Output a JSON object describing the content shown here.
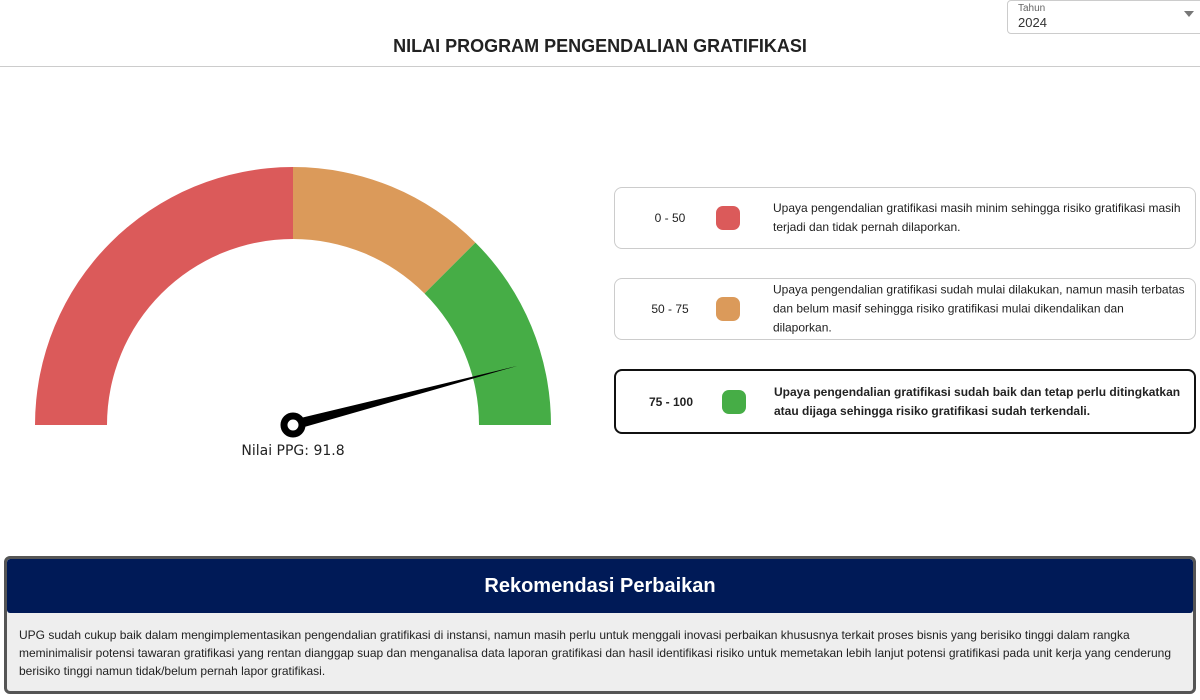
{
  "filter": {
    "label": "Tahun",
    "value": "2024"
  },
  "page_title": "NILAI PROGRAM PENGENDALIAN GRATIFIKASI",
  "gauge": {
    "value": 91.8,
    "min": 0,
    "max": 100,
    "label": "Nilai PPG: 91.8",
    "bands": [
      {
        "from": 0,
        "to": 50,
        "color": "#db5a5a"
      },
      {
        "from": 50,
        "to": 75,
        "color": "#db9a5a"
      },
      {
        "from": 75,
        "to": 100,
        "color": "#46ad46"
      }
    ]
  },
  "legend": [
    {
      "range": "0 - 50",
      "color": "#db5a5a",
      "description": "Upaya pengendalian gratifikasi masih minim sehingga risiko gratifikasi masih terjadi dan tidak pernah dilaporkan.",
      "active": false
    },
    {
      "range": "50 - 75",
      "color": "#db9a5a",
      "description": "Upaya pengendalian gratifikasi sudah mulai dilakukan, namun masih terbatas dan belum masif sehingga risiko gratifikasi mulai dikendalikan dan dilaporkan.",
      "active": false
    },
    {
      "range": "75 - 100",
      "color": "#46ad46",
      "description": "Upaya pengendalian gratifikasi sudah baik dan tetap perlu ditingkatkan atau dijaga sehingga risiko gratifikasi sudah terkendali.",
      "active": true
    }
  ],
  "recommendation": {
    "title": "Rekomendasi Perbaikan",
    "text": "UPG sudah cukup baik dalam mengimplementasikan pengendalian gratifikasi di instansi, namun masih perlu untuk menggali inovasi perbaikan khususnya terkait proses bisnis yang berisiko tinggi dalam rangka meminimalisir potensi tawaran gratifikasi yang rentan dianggap suap dan menganalisa data laporan gratifikasi dan hasil identifikasi risiko untuk memetakan lebih lanjut potensi gratifikasi pada unit kerja yang cenderung berisiko tinggi namun tidak/belum pernah lapor gratifikasi."
  }
}
